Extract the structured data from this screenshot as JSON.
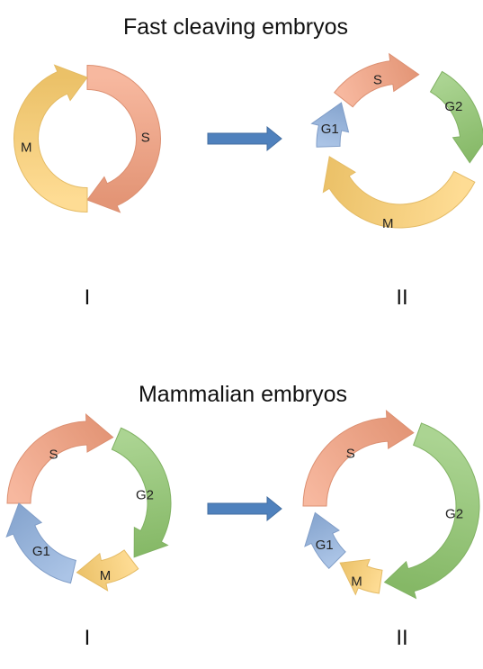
{
  "colors": {
    "S": "#f4a07f",
    "M": "#fdd070",
    "G1": "#8fb0de",
    "G2": "#8fc66e",
    "transition_arrow": "#4f81bd"
  },
  "panels": [
    {
      "title": "Fast cleaving embryos",
      "before": {
        "label": "I",
        "phases": [
          {
            "name": "S",
            "from": -90,
            "to": 90,
            "color_key": "S"
          },
          {
            "name": "M",
            "from": 90,
            "to": 270,
            "color_key": "M"
          }
        ]
      },
      "after": {
        "label": "II",
        "phases": [
          {
            "name": "G2",
            "from": -60,
            "to": 15,
            "color_key": "G2"
          },
          {
            "name": "M",
            "from": 27,
            "to": 170,
            "color_key": "M"
          },
          {
            "name": "G1",
            "from": 178,
            "to": 215,
            "color_key": "G1"
          },
          {
            "name": "S",
            "from": 218,
            "to": 285,
            "color_key": "S"
          }
        ]
      }
    },
    {
      "title": "Mammalian embryos",
      "before": {
        "label": "I",
        "phases": [
          {
            "name": "S",
            "from": 180,
            "to": 290,
            "color_key": "S"
          },
          {
            "name": "G2",
            "from": 293,
            "to": 410,
            "color_key": "G2"
          },
          {
            "name": "M",
            "from": 413,
            "to": 460,
            "color_key": "M"
          },
          {
            "name": "G1",
            "from": 463,
            "to": 540,
            "color_key": "G1"
          }
        ]
      },
      "after": {
        "label": "II",
        "phases": [
          {
            "name": "S",
            "from": 180,
            "to": 287,
            "color_key": "S"
          },
          {
            "name": "G2",
            "from": 290,
            "to": 455,
            "color_key": "G2"
          },
          {
            "name": "M",
            "from": 458,
            "to": 492,
            "color_key": "M"
          },
          {
            "name": "G1",
            "from": 495,
            "to": 535,
            "color_key": "G1"
          }
        ]
      }
    }
  ]
}
